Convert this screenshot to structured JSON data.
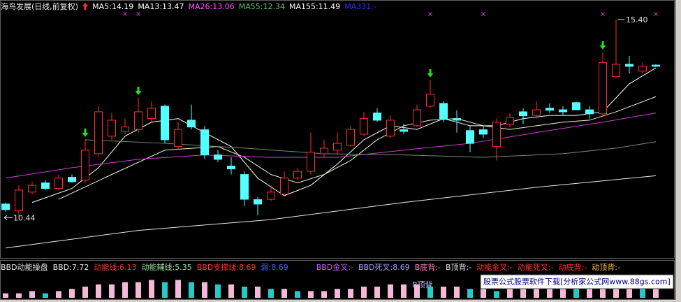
{
  "chart_data": [
    {
      "type": "candlestick",
      "title": "海鸟发展(日线,前复权)",
      "title_color": "#e8e8e8",
      "legend": [
        {
          "text": "MA5:14.19",
          "color": "#ffffff"
        },
        {
          "text": "MA13:13.47",
          "color": "#ffffff"
        },
        {
          "text": "MA26:13.06",
          "color": "#ff50ff"
        },
        {
          "text": "MA55:12.34",
          "color": "#60c060"
        },
        {
          "text": "MA155:11.49",
          "color": "#ffffff"
        },
        {
          "text": "MA331:-",
          "color": "#3030ff"
        }
      ],
      "ylim": [
        9.5,
        15.89
      ],
      "up_color": "#ff3030",
      "down_color": "#54ffff",
      "open": [
        10.78,
        10.61,
        11.08,
        11.31,
        11.17,
        11.45,
        11.38,
        12.04,
        12.48,
        12.6,
        12.65,
        12.92,
        13.23,
        12.22,
        12.88,
        12.64,
        12.01,
        11.73,
        11.52,
        10.89,
        10.9,
        11.03,
        11.43,
        11.6,
        12.04,
        12.13,
        12.25,
        12.53,
        13.06,
        12.48,
        12.64,
        12.74,
        13.23,
        13.3,
        12.92,
        12.62,
        12.64,
        12.22,
        12.78,
        13.09,
        13.0,
        13.18,
        13.14,
        13.32,
        13.14,
        13.04,
        13.97,
        14.28,
        14.11,
        14.26
      ],
      "close": [
        10.64,
        11.13,
        11.25,
        11.17,
        11.43,
        11.34,
        12.13,
        13.09,
        12.88,
        12.71,
        13.09,
        13.18,
        12.39,
        12.65,
        12.71,
        12.01,
        11.9,
        11.66,
        10.9,
        10.78,
        11.08,
        11.43,
        11.6,
        12.08,
        12.18,
        12.3,
        12.65,
        12.92,
        12.88,
        12.88,
        12.6,
        13.14,
        13.53,
        12.92,
        12.88,
        12.3,
        12.53,
        12.83,
        12.95,
        12.99,
        13.14,
        13.13,
        13.09,
        13.14,
        13.04,
        14.32,
        14.28,
        14.23,
        14.23,
        14.23
      ],
      "high": [
        10.82,
        11.25,
        11.34,
        11.38,
        11.52,
        11.52,
        12.39,
        13.23,
        13.06,
        12.92,
        13.44,
        13.35,
        13.27,
        12.83,
        13.27,
        12.74,
        12.13,
        11.95,
        11.6,
        10.96,
        11.25,
        11.6,
        11.69,
        12.57,
        12.39,
        12.57,
        12.74,
        13.09,
        13.18,
        13.0,
        12.78,
        13.27,
        13.88,
        13.35,
        13.13,
        12.74,
        12.74,
        12.92,
        13.06,
        13.18,
        13.35,
        13.3,
        13.23,
        13.35,
        13.23,
        14.58,
        15.4,
        14.49,
        14.32,
        14.28
      ],
      "low": [
        10.59,
        10.44,
        11.03,
        11.13,
        11.13,
        11.31,
        11.31,
        11.95,
        12.39,
        12.53,
        12.57,
        12.83,
        12.3,
        12.13,
        12.65,
        11.9,
        11.83,
        11.52,
        10.73,
        10.5,
        10.85,
        10.99,
        11.38,
        11.52,
        11.95,
        12.01,
        12.22,
        12.48,
        12.83,
        12.43,
        12.53,
        12.71,
        13.18,
        12.83,
        12.57,
        12.08,
        12.43,
        11.87,
        12.71,
        12.78,
        12.92,
        13.06,
        13.0,
        13.13,
        12.92,
        12.95,
        13.93,
        14.05,
        14.05,
        14.21
      ],
      "lines": [
        {
          "color": "#ffffff",
          "x": [
            2,
            5,
            7,
            9,
            11,
            13,
            15,
            17,
            19,
            21,
            23,
            25,
            27,
            29,
            31,
            33,
            35,
            37,
            39,
            41,
            43,
            45,
            47,
            49
          ],
          "values": [
            10.82,
            11.17,
            11.69,
            12.48,
            12.83,
            12.92,
            12.57,
            12.22,
            11.43,
            10.99,
            11.25,
            11.78,
            12.39,
            12.74,
            12.65,
            12.92,
            12.74,
            12.74,
            12.92,
            13.0,
            13.0,
            13.09,
            13.79,
            14.19
          ]
        },
        {
          "color": "#f0f0c8",
          "x": [
            4,
            8,
            12,
            16,
            18,
            20,
            22,
            24,
            26,
            28,
            30,
            32,
            34,
            36,
            38,
            40,
            42,
            44,
            46,
            49
          ],
          "values": [
            10.9,
            11.52,
            12.13,
            12.22,
            11.95,
            11.52,
            11.31,
            11.52,
            11.87,
            12.39,
            12.74,
            12.88,
            12.92,
            12.74,
            12.65,
            12.74,
            12.83,
            12.88,
            13.09,
            13.47
          ]
        },
        {
          "color": "#d040d0",
          "x": [
            0,
            5,
            10,
            15,
            20,
            25,
            30,
            35,
            40,
            45,
            49
          ],
          "values": [
            11.43,
            11.69,
            11.9,
            12.01,
            11.95,
            11.95,
            12.13,
            12.3,
            12.57,
            12.83,
            13.06
          ]
        },
        {
          "color": "#70906a",
          "x": [
            6,
            12,
            18,
            24,
            30,
            36,
            42,
            46,
            49
          ],
          "values": [
            12.39,
            12.3,
            12.18,
            12.04,
            12.01,
            11.95,
            12.04,
            12.18,
            12.34
          ]
        },
        {
          "color": "#e8e8e8",
          "x": [
            0,
            10,
            20,
            30,
            40,
            49
          ],
          "values": [
            9.68,
            10.12,
            10.39,
            10.82,
            11.2,
            11.49
          ]
        }
      ],
      "buy_signals": [
        6,
        10,
        32,
        45
      ],
      "buy_color": "#20e020",
      "sell_marks": [
        9,
        10,
        32,
        36,
        45,
        49
      ],
      "sell_color": "#c040c0",
      "high_label": {
        "value": 15.4,
        "label": "15.40"
      },
      "low_label": {
        "value": 10.44,
        "label": "10.44"
      }
    },
    {
      "type": "bar",
      "title": "BBD动能操盘",
      "legend": [
        {
          "text": "BBD:7.72",
          "color": "#e8e8e8"
        },
        {
          "text": "动能线:6.13",
          "color": "#ff3030"
        },
        {
          "text": "动能辅线:5.35",
          "color": "#a0e0a0"
        },
        {
          "text": "BBD支撑线:8.69",
          "color": "#ff3030"
        },
        {
          "text": "弱:8.69",
          "color": "#4060ff"
        },
        {
          "text": "BBD金叉:-",
          "color": "#c060ff"
        },
        {
          "text": "BBD死叉:8.69",
          "color": "#a0a0ff"
        },
        {
          "text": "B底背:-",
          "color": "#ff80c0"
        },
        {
          "text": "B顶背:-",
          "color": "#e8e8e8"
        },
        {
          "text": "动能金叉:-",
          "color": "#ff3030"
        },
        {
          "text": "动能死叉:-",
          "color": "#ff3030"
        },
        {
          "text": "动底背:-",
          "color": "#ff3030"
        },
        {
          "text": "动顶背:-",
          "color": "#ffc040"
        }
      ],
      "values": [
        2,
        2,
        3,
        2,
        3,
        4,
        5,
        6,
        6,
        7,
        7,
        8,
        7,
        8,
        7,
        7,
        6,
        6,
        5,
        5,
        4,
        4,
        3,
        3,
        3,
        4,
        4,
        5,
        5,
        6,
        6,
        6,
        5,
        5,
        5,
        4,
        4,
        3,
        4,
        4,
        5,
        5,
        5,
        4,
        4,
        6,
        7,
        7,
        6,
        6
      ],
      "ylim": [
        0,
        10
      ],
      "rise_color": "#f4b8d8",
      "fall_color": "#28c8c8",
      "annotation": "B顶背"
    }
  ],
  "watermark": "股票公式股票软件下载[分析家公式网www.88gs.com]"
}
